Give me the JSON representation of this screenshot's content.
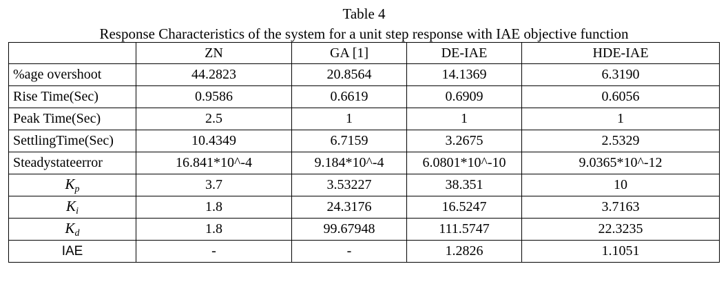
{
  "caption": {
    "table_number": "Table 4",
    "title": "Response Characteristics of the system for a unit step response with IAE objective function"
  },
  "table": {
    "columns": [
      "",
      "ZN",
      "GA [1]",
      "DE-IAE",
      "HDE-IAE"
    ],
    "rows": [
      {
        "label": "%age overshoot",
        "values": [
          "44.2823",
          "20.8564",
          "14.1369",
          "6.3190"
        ]
      },
      {
        "label": "Rise Time(Sec)",
        "values": [
          "0.9586",
          "0.6619",
          "0.6909",
          "0.6056"
        ]
      },
      {
        "label": "Peak Time(Sec)",
        "values": [
          "2.5",
          "1",
          "1",
          "1"
        ]
      },
      {
        "label": "SettlingTime(Sec)",
        "values": [
          "10.4349",
          "6.7159",
          "3.2675",
          "2.5329"
        ]
      },
      {
        "label": "Steadystateerror",
        "values": [
          "16.841*10^-4",
          "9.184*10^-4",
          "6.0801*10^-10",
          "9.0365*10^-12"
        ]
      },
      {
        "symbol": "K",
        "subscript": "p",
        "values": [
          "3.7",
          "3.53227",
          "38.351",
          "10"
        ]
      },
      {
        "symbol": "K",
        "subscript": "i",
        "values": [
          "1.8",
          "24.3176",
          "16.5247",
          "3.7163"
        ]
      },
      {
        "symbol": "K",
        "subscript": "d",
        "values": [
          "1.8",
          "99.67948",
          "111.5747",
          "22.3235"
        ]
      },
      {
        "label": "IAE",
        "values": [
          "-",
          "-",
          "1.2826",
          "1.1051"
        ]
      }
    ]
  }
}
